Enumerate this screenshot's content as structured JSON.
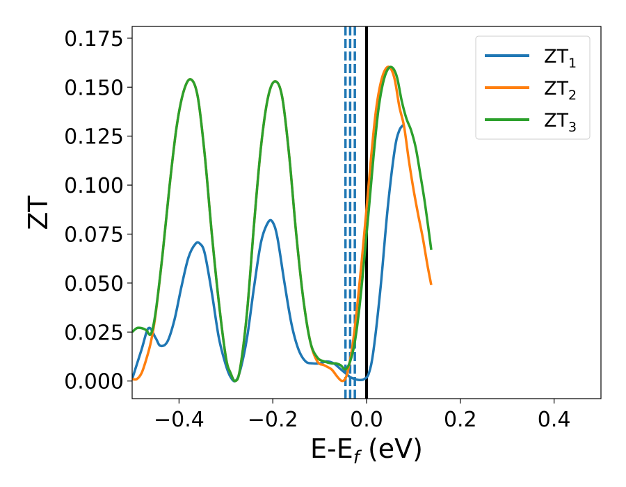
{
  "chart_data": {
    "type": "line",
    "xlabel": "E-E",
    "xlabel_sub": "f",
    "xlabel_unit": "(eV)",
    "ylabel": "ZT",
    "xlim": [
      -0.5,
      0.5
    ],
    "ylim": [
      -0.009,
      0.181
    ],
    "xticks": [
      -0.4,
      -0.2,
      0.0,
      0.2,
      0.4
    ],
    "xtick_labels": [
      "−0.4",
      "−0.2",
      "0.0",
      "0.2",
      "0.4"
    ],
    "yticks": [
      0.0,
      0.025,
      0.05,
      0.075,
      0.1,
      0.125,
      0.15,
      0.175
    ],
    "ytick_labels": [
      "0.000",
      "0.025",
      "0.050",
      "0.075",
      "0.100",
      "0.125",
      "0.150",
      "0.175"
    ],
    "grid": false,
    "legend_position": "top-right",
    "series": [
      {
        "name": "ZT",
        "sub": "1",
        "color": "#1f77b4",
        "x": [
          -0.5,
          -0.48,
          -0.465,
          -0.45,
          -0.44,
          -0.425,
          -0.41,
          -0.395,
          -0.38,
          -0.365,
          -0.355,
          -0.345,
          -0.33,
          -0.315,
          -0.3,
          -0.29,
          -0.28,
          -0.27,
          -0.255,
          -0.24,
          -0.225,
          -0.21,
          -0.2,
          -0.19,
          -0.175,
          -0.16,
          -0.145,
          -0.13,
          -0.115,
          -0.1,
          -0.085,
          -0.07,
          -0.055,
          -0.045,
          -0.035,
          -0.025,
          -0.015,
          -0.005,
          0.005,
          0.015,
          0.03,
          0.045,
          0.06,
          0.07,
          0.08
        ],
        "y": [
          0.001,
          0.016,
          0.027,
          0.022,
          0.018,
          0.02,
          0.031,
          0.048,
          0.063,
          0.07,
          0.07,
          0.065,
          0.045,
          0.022,
          0.008,
          0.002,
          0.0,
          0.005,
          0.022,
          0.048,
          0.071,
          0.081,
          0.081,
          0.073,
          0.05,
          0.029,
          0.016,
          0.01,
          0.009,
          0.009,
          0.01,
          0.009,
          0.006,
          0.004,
          0.002,
          0.001,
          0.0005,
          0.001,
          0.004,
          0.016,
          0.048,
          0.088,
          0.118,
          0.128,
          0.131
        ]
      },
      {
        "name": "ZT",
        "sub": "2",
        "color": "#ff7f0e",
        "x": [
          -0.5,
          -0.49,
          -0.48,
          -0.47,
          -0.46,
          -0.45,
          -0.435,
          -0.42,
          -0.405,
          -0.39,
          -0.375,
          -0.36,
          -0.345,
          -0.33,
          -0.315,
          -0.3,
          -0.29,
          -0.28,
          -0.27,
          -0.255,
          -0.24,
          -0.225,
          -0.21,
          -0.195,
          -0.18,
          -0.165,
          -0.15,
          -0.135,
          -0.12,
          -0.105,
          -0.09,
          -0.075,
          -0.065,
          -0.058,
          -0.052,
          -0.046,
          -0.04,
          -0.03,
          -0.02,
          -0.01,
          0.0,
          0.01,
          0.02,
          0.03,
          0.04,
          0.05,
          0.06,
          0.07,
          0.08,
          0.09,
          0.1,
          0.11,
          0.12,
          0.13,
          0.138
        ],
        "y": [
          0.001,
          0.001,
          0.004,
          0.011,
          0.02,
          0.034,
          0.065,
          0.1,
          0.13,
          0.148,
          0.154,
          0.145,
          0.115,
          0.075,
          0.04,
          0.012,
          0.004,
          0.0,
          0.006,
          0.035,
          0.08,
          0.12,
          0.145,
          0.153,
          0.145,
          0.115,
          0.075,
          0.042,
          0.02,
          0.01,
          0.008,
          0.006,
          0.003,
          0.001,
          0.0,
          0.001,
          0.005,
          0.018,
          0.038,
          0.062,
          0.088,
          0.115,
          0.138,
          0.152,
          0.159,
          0.16,
          0.154,
          0.14,
          0.13,
          0.113,
          0.098,
          0.085,
          0.073,
          0.059,
          0.049
        ]
      },
      {
        "name": "ZT",
        "sub": "3",
        "color": "#2ca02c",
        "x": [
          -0.5,
          -0.49,
          -0.48,
          -0.47,
          -0.46,
          -0.45,
          -0.435,
          -0.42,
          -0.405,
          -0.39,
          -0.375,
          -0.36,
          -0.345,
          -0.33,
          -0.315,
          -0.3,
          -0.29,
          -0.28,
          -0.27,
          -0.255,
          -0.24,
          -0.225,
          -0.21,
          -0.195,
          -0.18,
          -0.165,
          -0.15,
          -0.135,
          -0.12,
          -0.105,
          -0.09,
          -0.075,
          -0.065,
          -0.055,
          -0.045,
          -0.035,
          -0.025,
          -0.015,
          -0.005,
          0.005,
          0.015,
          0.025,
          0.035,
          0.045,
          0.055,
          0.065,
          0.075,
          0.085,
          0.095,
          0.105,
          0.115,
          0.125,
          0.138
        ],
        "y": [
          0.025,
          0.027,
          0.027,
          0.026,
          0.024,
          0.035,
          0.065,
          0.1,
          0.13,
          0.148,
          0.154,
          0.145,
          0.115,
          0.075,
          0.04,
          0.012,
          0.004,
          0.0,
          0.006,
          0.035,
          0.08,
          0.12,
          0.145,
          0.153,
          0.145,
          0.115,
          0.075,
          0.042,
          0.02,
          0.012,
          0.01,
          0.009,
          0.009,
          0.008,
          0.006,
          0.01,
          0.02,
          0.038,
          0.062,
          0.088,
          0.115,
          0.138,
          0.152,
          0.159,
          0.16,
          0.155,
          0.143,
          0.134,
          0.128,
          0.119,
          0.105,
          0.09,
          0.067
        ]
      }
    ],
    "vlines": [
      {
        "x": -0.045,
        "color": "#1f77b4",
        "style": "dashed"
      },
      {
        "x": -0.035,
        "color": "#1f77b4",
        "style": "dashed"
      },
      {
        "x": -0.025,
        "color": "#1f77b4",
        "style": "dashed"
      },
      {
        "x": 0.0,
        "color": "#000000",
        "style": "solid"
      }
    ]
  }
}
